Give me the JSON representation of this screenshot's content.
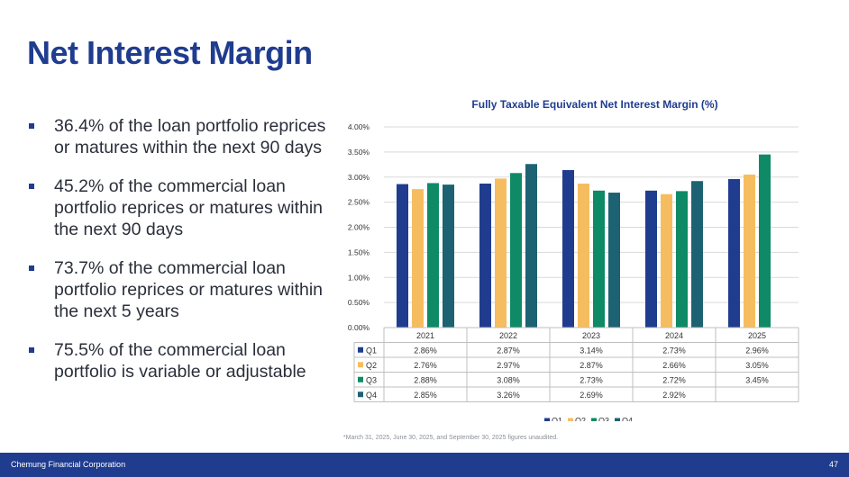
{
  "slide": {
    "title": "Net Interest Margin",
    "bullets": [
      "36.4% of the loan portfolio reprices or matures within the next 90 days",
      "45.2% of the commercial loan portfolio reprices or matures within the next 90 days",
      "73.7% of the commercial loan portfolio reprices or matures within the next 5 years",
      "75.5% of the commercial loan portfolio is variable or adjustable"
    ],
    "footnote": "*March 31, 2025, June 30, 2025, and September 30, 2025 figures unaudited.",
    "footer_org": "Chemung Financial Corporation",
    "page_number": "47"
  },
  "chart_data": {
    "type": "bar",
    "title": "Fully Taxable Equivalent Net Interest Margin (%)",
    "categories": [
      "2021",
      "2022",
      "2023",
      "2024",
      "2025"
    ],
    "series": [
      {
        "name": "Q1",
        "color": "#1f3c8f",
        "values": [
          2.86,
          2.87,
          3.14,
          2.73,
          2.96
        ],
        "labels": [
          "2.86%",
          "2.87%",
          "3.14%",
          "2.73%",
          "2.96%"
        ]
      },
      {
        "name": "Q2",
        "color": "#f6bd60",
        "values": [
          2.76,
          2.97,
          2.87,
          2.66,
          3.05
        ],
        "labels": [
          "2.76%",
          "2.97%",
          "2.87%",
          "2.66%",
          "3.05%"
        ]
      },
      {
        "name": "Q3",
        "color": "#0e8a66",
        "values": [
          2.88,
          3.08,
          2.73,
          2.72,
          3.45
        ],
        "labels": [
          "2.88%",
          "3.08%",
          "2.73%",
          "2.72%",
          "3.45%"
        ]
      },
      {
        "name": "Q4",
        "color": "#1d6272",
        "values": [
          2.85,
          3.26,
          2.69,
          2.92,
          null
        ],
        "labels": [
          "2.85%",
          "3.26%",
          "2.69%",
          "2.92%",
          ""
        ]
      }
    ],
    "ylim": [
      0,
      4
    ],
    "yticks": [
      0,
      0.5,
      1,
      1.5,
      2,
      2.5,
      3,
      3.5,
      4
    ],
    "ytick_labels": [
      "0.00%",
      "0.50%",
      "1.00%",
      "1.50%",
      "2.00%",
      "2.50%",
      "3.00%",
      "3.50%",
      "4.00%"
    ],
    "legend": "bottom",
    "grid": true,
    "data_table": true
  }
}
